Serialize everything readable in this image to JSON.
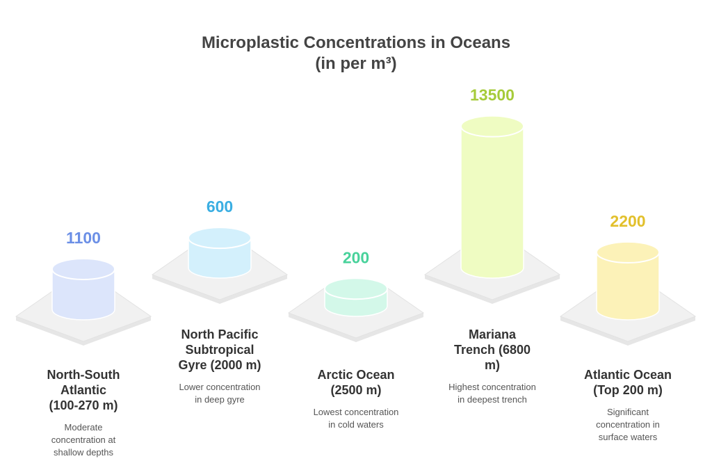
{
  "chart_data": {
    "type": "cylinder",
    "title": "Microplastic Concentrations in Oceans",
    "subtitle": "(in per m³)",
    "categories": [
      {
        "title_lines": [
          "North-South",
          "Atlantic",
          "(100-270 m)"
        ],
        "description_lines": [
          "Moderate",
          "concentration at",
          "shallow depths"
        ]
      },
      {
        "title_lines": [
          "North Pacific",
          "Subtropical",
          "Gyre (2000 m)"
        ],
        "description_lines": [
          "Lower concentration",
          "in deep gyre"
        ]
      },
      {
        "title_lines": [
          "Arctic Ocean",
          "(2500 m)"
        ],
        "description_lines": [
          "Lowest concentration",
          "in cold waters"
        ]
      },
      {
        "title_lines": [
          "Mariana",
          "Trench (6800",
          "m)"
        ],
        "description_lines": [
          "Highest concentration",
          "in deepest trench"
        ]
      },
      {
        "title_lines": [
          "Atlantic Ocean",
          "(Top 200 m)"
        ],
        "description_lines": [
          "Significant",
          "concentration in",
          "surface waters"
        ]
      }
    ],
    "values": [
      1100,
      600,
      200,
      13500,
      2200
    ],
    "colors": [
      "#dce5fb",
      "#d3f0fc",
      "#d3f8e9",
      "#effcc2",
      "#fcf2b8"
    ],
    "label_colors": [
      "#6b8fe6",
      "#3aaee2",
      "#48d29b",
      "#a6cb3a",
      "#e2c02c"
    ]
  }
}
